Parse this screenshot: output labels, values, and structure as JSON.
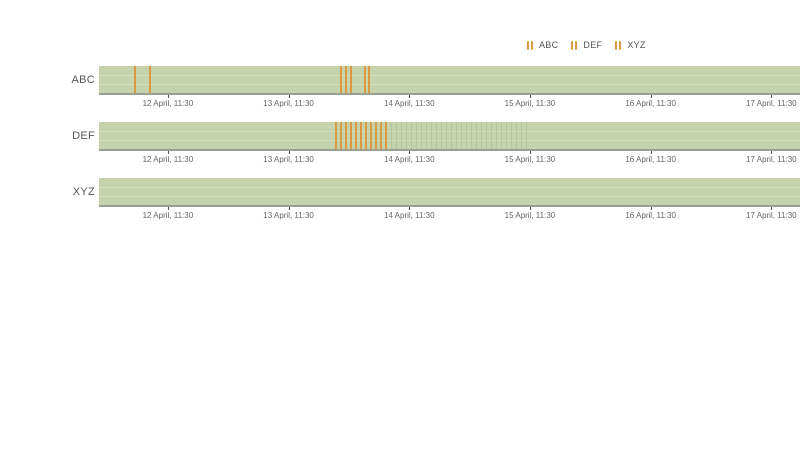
{
  "page": {
    "background": "#ffffff"
  },
  "legend": {
    "position": "top-right",
    "marker_icon": "double-vertical-bars",
    "items": [
      {
        "label": "ABC"
      },
      {
        "label": "DEF"
      },
      {
        "label": "XYZ"
      }
    ]
  },
  "chart_data": {
    "type": "scatter",
    "variant": "timeline-event-mark-chart (3 stacked lanes, datetime x-axis repeated under each lane)",
    "title": "",
    "xlabel": "",
    "ylabel": "",
    "grid": "off",
    "legend_position": "top-right",
    "x_axis": {
      "kind": "datetime",
      "tick_labels": [
        "12 April, 11:30",
        "13 April, 11:30",
        "14 April, 11:30",
        "15 April, 11:30",
        "16 April, 11:30",
        "17 April, 11:30"
      ],
      "tick_offsets_h": [
        0,
        24,
        48,
        72,
        96,
        120
      ],
      "tick_interval": "1 day",
      "domain_start_h": -13.7,
      "domain_end_h": 125.7,
      "visible_range_approx": "11 April ~21:45 to 17 April ~17:00"
    },
    "rows": [
      {
        "label": "ABC",
        "event_offsets_h": [
          -6.56,
          -3.58,
          34.4,
          35.39,
          36.39,
          39.17,
          39.97
        ],
        "events_approx": [
          "12 Apr ~04:55",
          "12 Apr ~07:55",
          "13 Apr ~21:55",
          "13 Apr ~22:55",
          "13 Apr ~23:55",
          "14 Apr ~02:40",
          "14 Apr ~03:30"
        ],
        "minor_event_offsets_h": []
      },
      {
        "label": "DEF",
        "event_offsets_h": [
          33.4,
          34.4,
          35.39,
          36.39,
          37.38,
          38.38,
          39.37,
          40.37,
          41.36,
          42.36,
          43.35
        ],
        "events_approx": [
          "~hourly orange marks from 13 Apr ~20:55 to 14 Apr ~06:50 (11 marks)"
        ],
        "minor_event_offsets_h": [
          44.34,
          45.33,
          46.33,
          47.32,
          48.31,
          49.31,
          50.3,
          51.3,
          52.29,
          53.28,
          54.28,
          55.27,
          56.26,
          57.26,
          58.25,
          59.25,
          60.24,
          61.23,
          62.23,
          63.22,
          64.21,
          65.21,
          66.2,
          67.2,
          68.19,
          69.18,
          70.18,
          71.17
        ],
        "minor_events_approx": [
          "faded ~hourly minor marks from 14 Apr ~07:50 to 15 Apr ~10:40 (28 marks)"
        ]
      },
      {
        "label": "XYZ",
        "event_offsets_h": [],
        "events_approx": [],
        "minor_event_offsets_h": []
      }
    ],
    "colors": {
      "band": "#c5d3ad",
      "band_gridline": "#d3deba",
      "event_mark": "#db9a41",
      "minor_mark": "#b6c59e",
      "axis_line": "#9aa091",
      "tick": "#555555",
      "tick_label": "#666666",
      "row_label": "#555555"
    }
  }
}
